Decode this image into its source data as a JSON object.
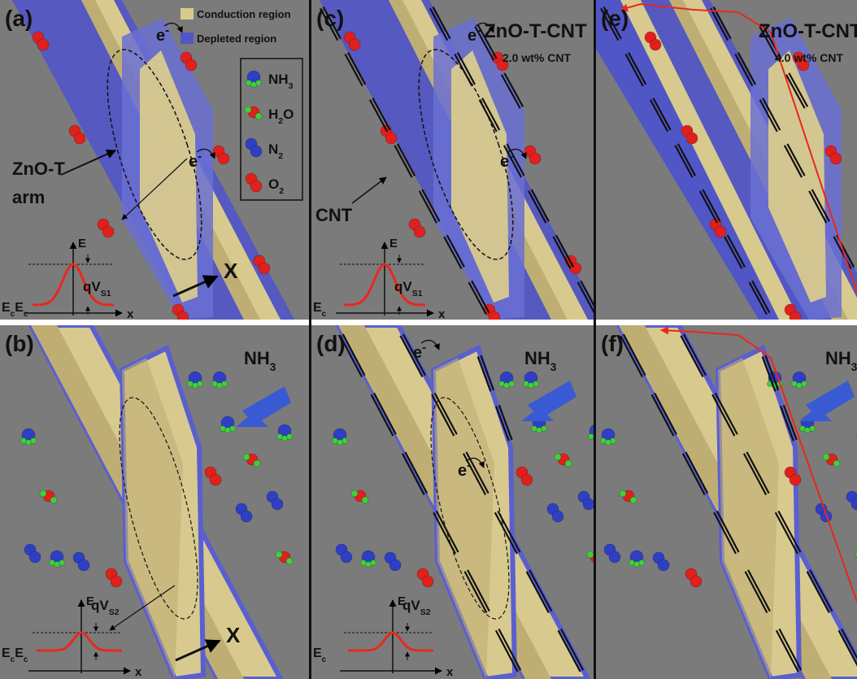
{
  "legend": {
    "regions": [
      "Conduction region",
      "Depleted region"
    ],
    "molecules": [
      [
        "NH",
        "3"
      ],
      [
        "H",
        "2",
        "O"
      ],
      [
        "N",
        "2"
      ],
      [
        "O",
        "2"
      ]
    ]
  },
  "panels": [
    {
      "label": "(a)",
      "note": [
        "ZnO-T",
        "arm"
      ],
      "electrons": [
        [
          "e",
          "-"
        ],
        [
          "e",
          "-"
        ]
      ],
      "axis": "X",
      "band": {
        "energy": "E",
        "barrier": [
          "qV",
          "S1"
        ],
        "edges": [
          [
            "E",
            "c"
          ],
          [
            "E",
            "c"
          ]
        ],
        "x": "x"
      }
    },
    {
      "label": "(b)",
      "gas": [
        "NH",
        "3"
      ],
      "axis": "X",
      "band": {
        "energy": "E",
        "barrier": [
          "qV",
          "S2"
        ],
        "edges": [
          [
            "E",
            "c"
          ],
          [
            "E",
            "c"
          ]
        ],
        "x": "x"
      }
    },
    {
      "label": "(c)",
      "title": "ZnO-T-CNT",
      "subtitle": "2.0 wt% CNT",
      "note": [
        "CNT"
      ],
      "electrons": [
        [
          "e",
          "-"
        ],
        [
          "e",
          "-"
        ]
      ],
      "band": {
        "energy": "E",
        "barrier": [
          "qV",
          "S1"
        ],
        "edges": [
          [
            "E",
            "c"
          ]
        ],
        "x": "x"
      }
    },
    {
      "label": "(d)",
      "gas": [
        "NH",
        "3"
      ],
      "electrons": [
        [
          "e",
          "-"
        ],
        [
          "e",
          "-"
        ]
      ],
      "band": {
        "energy": "E",
        "barrier": [
          "qV",
          "S2"
        ],
        "edges": [
          [
            "E",
            "c"
          ]
        ],
        "x": "x"
      }
    },
    {
      "label": "(e)",
      "title": "ZnO-T-CNT",
      "subtitle": "4.0 wt% CNT"
    },
    {
      "label": "(f)",
      "gas": [
        "NH",
        "3"
      ]
    }
  ]
}
